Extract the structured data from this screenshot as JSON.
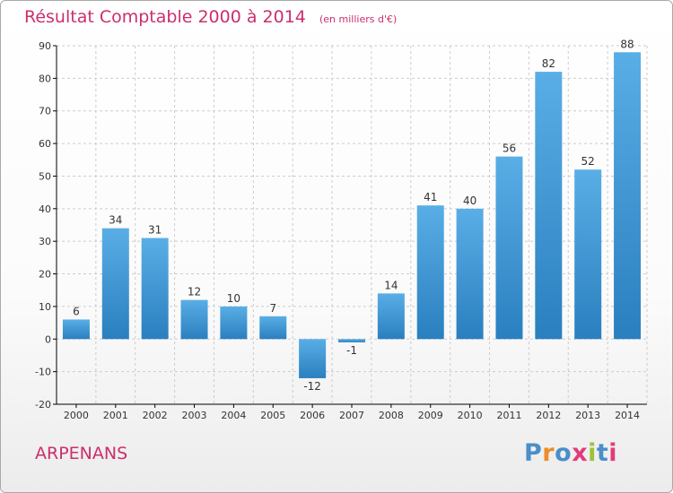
{
  "header": {
    "title": "Résultat Comptable 2000 à 2014",
    "unit": "(en milliers d'€)"
  },
  "footer": {
    "town": "ARPENANS",
    "brand": "Proxiti"
  },
  "colors": {
    "title": "#cc2e6d",
    "bar_top": "#5aaee6",
    "bar_bottom": "#2a7fbf",
    "grid": "#cccccc",
    "axis": "#000000",
    "brand_letters": [
      "#4b8ec9",
      "#ed8c2a",
      "#4b8ec9",
      "#e23c7a",
      "#9ac23a",
      "#4b8ec9",
      "#e23c7a"
    ]
  },
  "chart_data": {
    "type": "bar",
    "title": "Résultat Comptable 2000 à 2014",
    "subtitle": "(en milliers d'€)",
    "xlabel": "",
    "ylabel": "",
    "categories": [
      "2000",
      "2001",
      "2002",
      "2003",
      "2004",
      "2005",
      "2006",
      "2007",
      "2008",
      "2009",
      "2010",
      "2011",
      "2012",
      "2013",
      "2014"
    ],
    "values": [
      6,
      34,
      31,
      12,
      10,
      7,
      -12,
      -1,
      14,
      41,
      40,
      56,
      82,
      52,
      88
    ],
    "ylim": [
      -20,
      90
    ],
    "yticks": [
      -20,
      -10,
      0,
      10,
      20,
      30,
      40,
      50,
      60,
      70,
      80,
      90
    ],
    "grid": true,
    "legend": "none"
  }
}
